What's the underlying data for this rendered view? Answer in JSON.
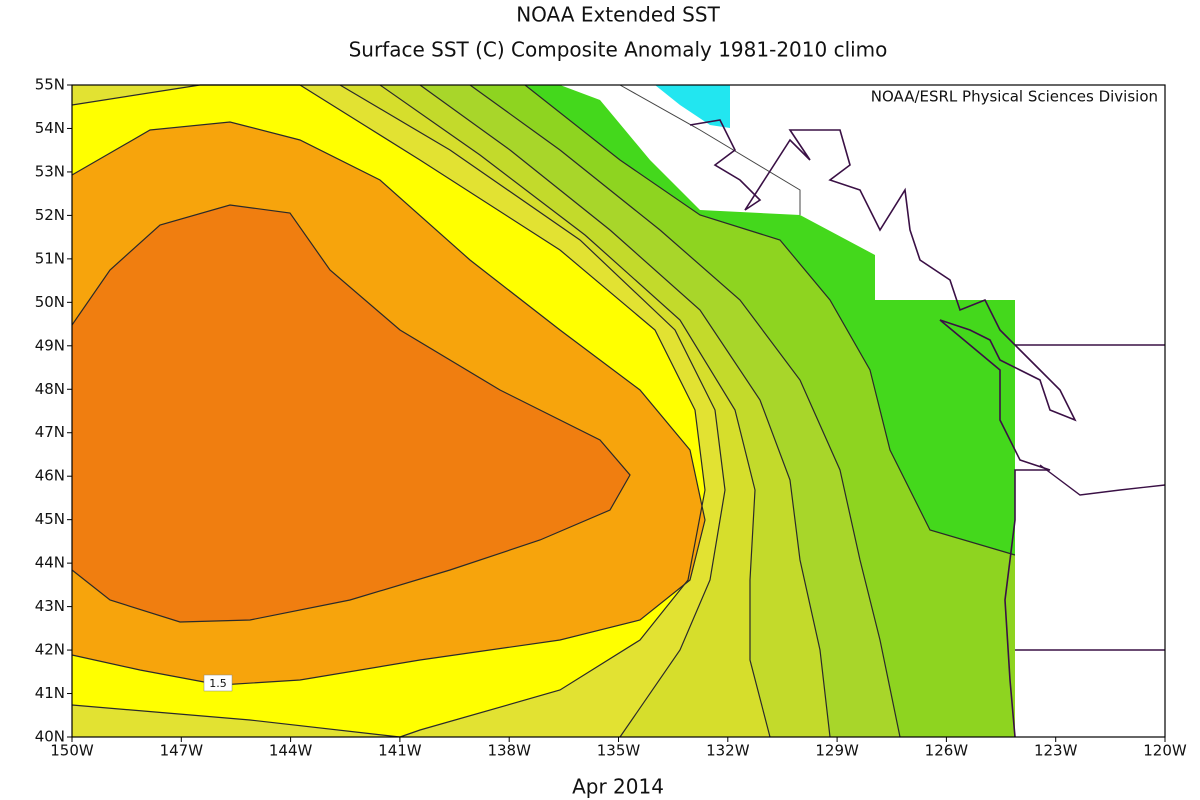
{
  "title": "NOAA Extended SST",
  "subtitle": "Surface SST (C) Composite Anomaly 1981-2010 climo",
  "credit": "NOAA/ESRL Physical Sciences Division",
  "x_ticks": [
    "150W",
    "147W",
    "144W",
    "141W",
    "138W",
    "135W",
    "132W",
    "129W",
    "126W",
    "123W",
    "120W"
  ],
  "y_ticks": [
    "55N",
    "54N",
    "53N",
    "52N",
    "51N",
    "50N",
    "49N",
    "48N",
    "47N",
    "46N",
    "45N",
    "44N",
    "43N",
    "42N",
    "41N",
    "40N"
  ],
  "contour_labels": [
    "1.5"
  ],
  "footer": "Apr 2014"
}
